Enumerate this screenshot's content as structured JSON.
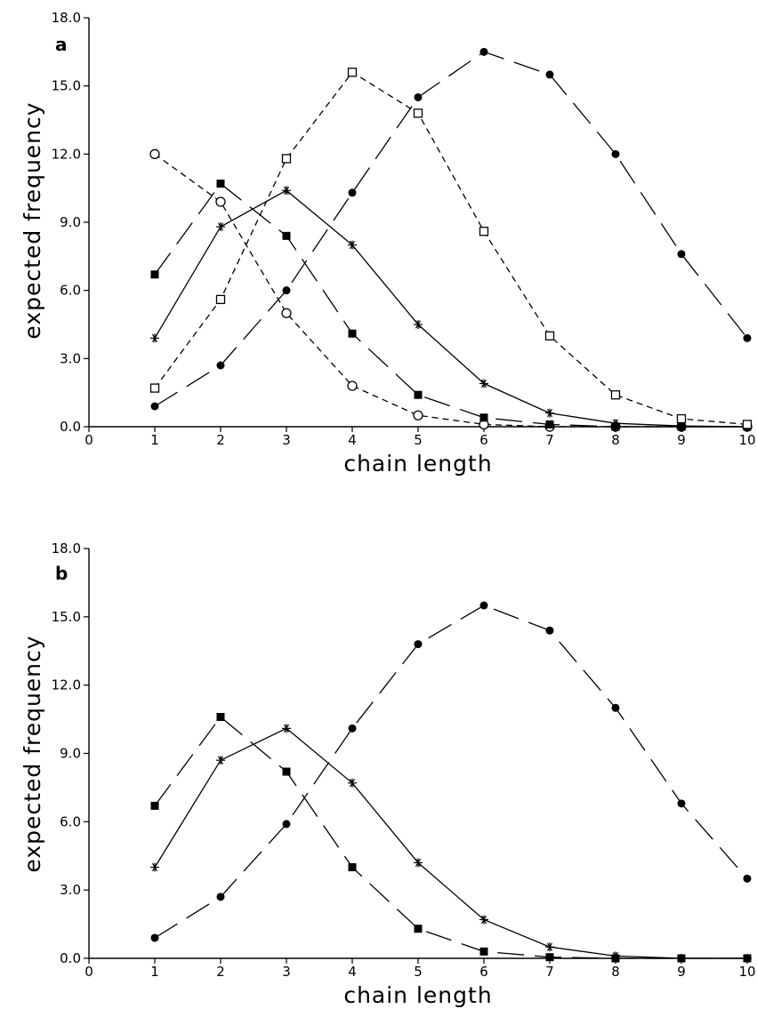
{
  "chart_data": [
    {
      "type": "line",
      "panel_label": "a",
      "xlabel": "chain length",
      "ylabel": "expected frequency",
      "xlim": [
        0,
        10
      ],
      "ylim": [
        0,
        18
      ],
      "x_ticks": [
        "0",
        "1",
        "2",
        "3",
        "4",
        "5",
        "6",
        "7",
        "8",
        "9",
        "10"
      ],
      "y_ticks": [
        "0.0",
        "3.0",
        "6.0",
        "9.0",
        "12.0",
        "15.0",
        "18.0"
      ],
      "grid": false,
      "series": [
        {
          "marker": "open-circle",
          "line": "short-dash",
          "x": [
            1,
            2,
            3,
            4,
            5,
            6,
            7,
            8,
            9,
            10
          ],
          "y": [
            12.0,
            9.9,
            5.0,
            1.8,
            0.5,
            0.1,
            0.0,
            0.0,
            0.0,
            0.0
          ]
        },
        {
          "marker": "filled-square",
          "line": "long-dash",
          "x": [
            1,
            2,
            3,
            4,
            5,
            6,
            7,
            8,
            9,
            10
          ],
          "y": [
            6.7,
            10.7,
            8.4,
            4.1,
            1.4,
            0.4,
            0.1,
            0.0,
            0.0,
            0.0
          ]
        },
        {
          "marker": "asterisk",
          "line": "solid",
          "x": [
            1,
            2,
            3,
            4,
            5,
            6,
            7,
            8,
            9,
            10
          ],
          "y": [
            3.9,
            8.8,
            10.4,
            8.0,
            4.5,
            1.9,
            0.6,
            0.15,
            0.03,
            0.0
          ]
        },
        {
          "marker": "open-square",
          "line": "short-dash",
          "x": [
            1,
            2,
            3,
            4,
            5,
            6,
            7,
            8,
            9,
            10
          ],
          "y": [
            1.7,
            5.6,
            11.8,
            15.6,
            13.8,
            8.6,
            4.0,
            1.4,
            0.35,
            0.1
          ]
        },
        {
          "marker": "filled-circle",
          "line": "long-dash",
          "x": [
            1,
            2,
            3,
            4,
            5,
            6,
            7,
            8,
            9,
            10
          ],
          "y": [
            0.9,
            2.7,
            6.0,
            10.3,
            14.5,
            16.5,
            15.5,
            12.0,
            7.6,
            3.9
          ]
        }
      ]
    },
    {
      "type": "line",
      "panel_label": "b",
      "xlabel": "chain length",
      "ylabel": "expected frequency",
      "xlim": [
        0,
        10
      ],
      "ylim": [
        0,
        18
      ],
      "x_ticks": [
        "0",
        "1",
        "2",
        "3",
        "4",
        "5",
        "6",
        "7",
        "8",
        "9",
        "10"
      ],
      "y_ticks": [
        "0.0",
        "3.0",
        "6.0",
        "9.0",
        "12.0",
        "15.0",
        "18.0"
      ],
      "grid": false,
      "series": [
        {
          "marker": "filled-square",
          "line": "long-dash",
          "x": [
            1,
            2,
            3,
            4,
            5,
            6,
            7,
            8,
            9,
            10
          ],
          "y": [
            6.7,
            10.6,
            8.2,
            4.0,
            1.3,
            0.3,
            0.05,
            0.0,
            0.0,
            0.0
          ]
        },
        {
          "marker": "asterisk",
          "line": "solid",
          "x": [
            1,
            2,
            3,
            4,
            5,
            6,
            7,
            8,
            9,
            10
          ],
          "y": [
            4.0,
            8.7,
            10.1,
            7.7,
            4.2,
            1.7,
            0.5,
            0.1,
            0.0,
            0.0
          ]
        },
        {
          "marker": "filled-circle",
          "line": "long-dash",
          "x": [
            1,
            2,
            3,
            4,
            5,
            6,
            7,
            8,
            9,
            10
          ],
          "y": [
            0.9,
            2.7,
            5.9,
            10.1,
            13.8,
            15.5,
            14.4,
            11.0,
            6.8,
            3.5
          ]
        }
      ]
    }
  ]
}
